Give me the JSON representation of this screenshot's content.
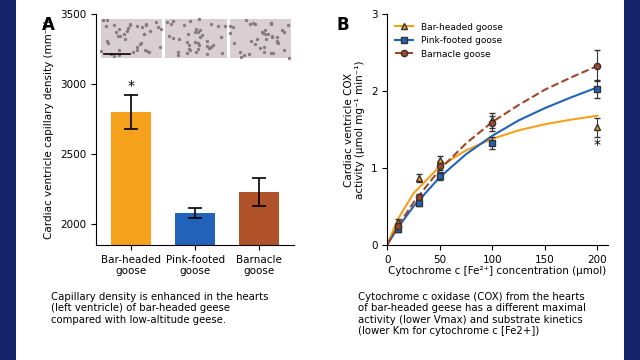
{
  "chart_data": [
    {
      "type": "bar",
      "panel": "A",
      "categories": [
        "Bar-headed\ngoose",
        "Pink-footed\ngoose",
        "Barnacle\ngoose"
      ],
      "values": [
        2800,
        2075,
        2230
      ],
      "errors": [
        120,
        35,
        100
      ],
      "colors": [
        "#f5a11c",
        "#2163b8",
        "#b0532a"
      ],
      "y_label": "Cardiac ventricle capillary density (mm⁻²)",
      "ylim": [
        1850,
        3500
      ],
      "yticks": [
        2000,
        2500,
        3000,
        3500
      ],
      "grid": false,
      "annotations": [
        {
          "text": "*",
          "x": 0,
          "y": 2940
        }
      ],
      "caption": "Capillary density is enhanced in the hearts\n(left ventricle) of bar-headed geese\ncompared with low-altitude geese."
    },
    {
      "type": "line",
      "panel": "B",
      "x_label": "Cytochrome c [Fe²⁺] concentration (μmol)",
      "y_label": "Cardiac ventricle COX\nactivity (μmol mg⁻¹ min⁻¹)",
      "xlim": [
        0,
        210
      ],
      "xticks": [
        0,
        50,
        100,
        150,
        200
      ],
      "ylim": [
        0,
        3
      ],
      "yticks": [
        0,
        1,
        2,
        3
      ],
      "grid": false,
      "legend": "upper left",
      "series": [
        {
          "name": "Bar-headed goose",
          "color": "#f5a11c",
          "marker": "triangle",
          "line_style": "solid",
          "x": [
            10,
            30,
            50,
            100,
            200
          ],
          "values": [
            0.3,
            0.87,
            1.1,
            1.62,
            1.53
          ],
          "errors": [
            0.03,
            0.05,
            0.06,
            0.1,
            0.12
          ],
          "fit": {
            "x": [
              0,
              10,
              25,
              50,
              75,
              100,
              125,
              150,
              175,
              200
            ],
            "values": [
              0,
              0.33,
              0.67,
              1.02,
              1.23,
              1.38,
              1.49,
              1.57,
              1.63,
              1.68
            ]
          }
        },
        {
          "name": "Pink-footed goose",
          "color": "#2163b8",
          "marker": "square",
          "line_style": "solid",
          "x": [
            10,
            30,
            50,
            100,
            200
          ],
          "values": [
            0.2,
            0.55,
            0.9,
            1.33,
            2.03
          ],
          "errors": [
            0.03,
            0.04,
            0.05,
            0.08,
            0.12
          ],
          "fit": {
            "x": [
              0,
              10,
              25,
              50,
              75,
              100,
              125,
              150,
              175,
              200
            ],
            "values": [
              0,
              0.22,
              0.5,
              0.88,
              1.18,
              1.42,
              1.62,
              1.78,
              1.92,
              2.05
            ]
          }
        },
        {
          "name": "Barnacle goose",
          "color": "#a0462a",
          "marker": "circle",
          "line_style": "dashed",
          "x": [
            10,
            30,
            50,
            100,
            200
          ],
          "values": [
            0.25,
            0.62,
            1.03,
            1.58,
            2.33
          ],
          "errors": [
            0.03,
            0.04,
            0.06,
            0.1,
            0.2
          ],
          "fit": {
            "x": [
              0,
              10,
              25,
              50,
              75,
              100,
              125,
              150,
              175,
              200
            ],
            "values": [
              0,
              0.24,
              0.55,
              0.98,
              1.32,
              1.6,
              1.82,
              2.02,
              2.18,
              2.33
            ]
          }
        }
      ],
      "annotations": [
        {
          "text": "*",
          "x": 200,
          "y": 1.3
        }
      ],
      "caption": "Cytochrome c oxidase (COX) from the hearts\nof bar-headed geese has a different maximal\nactivity (lower Vmax) and substrate kinetics\n(lower Km for cytochrome c [Fe2+])"
    }
  ]
}
